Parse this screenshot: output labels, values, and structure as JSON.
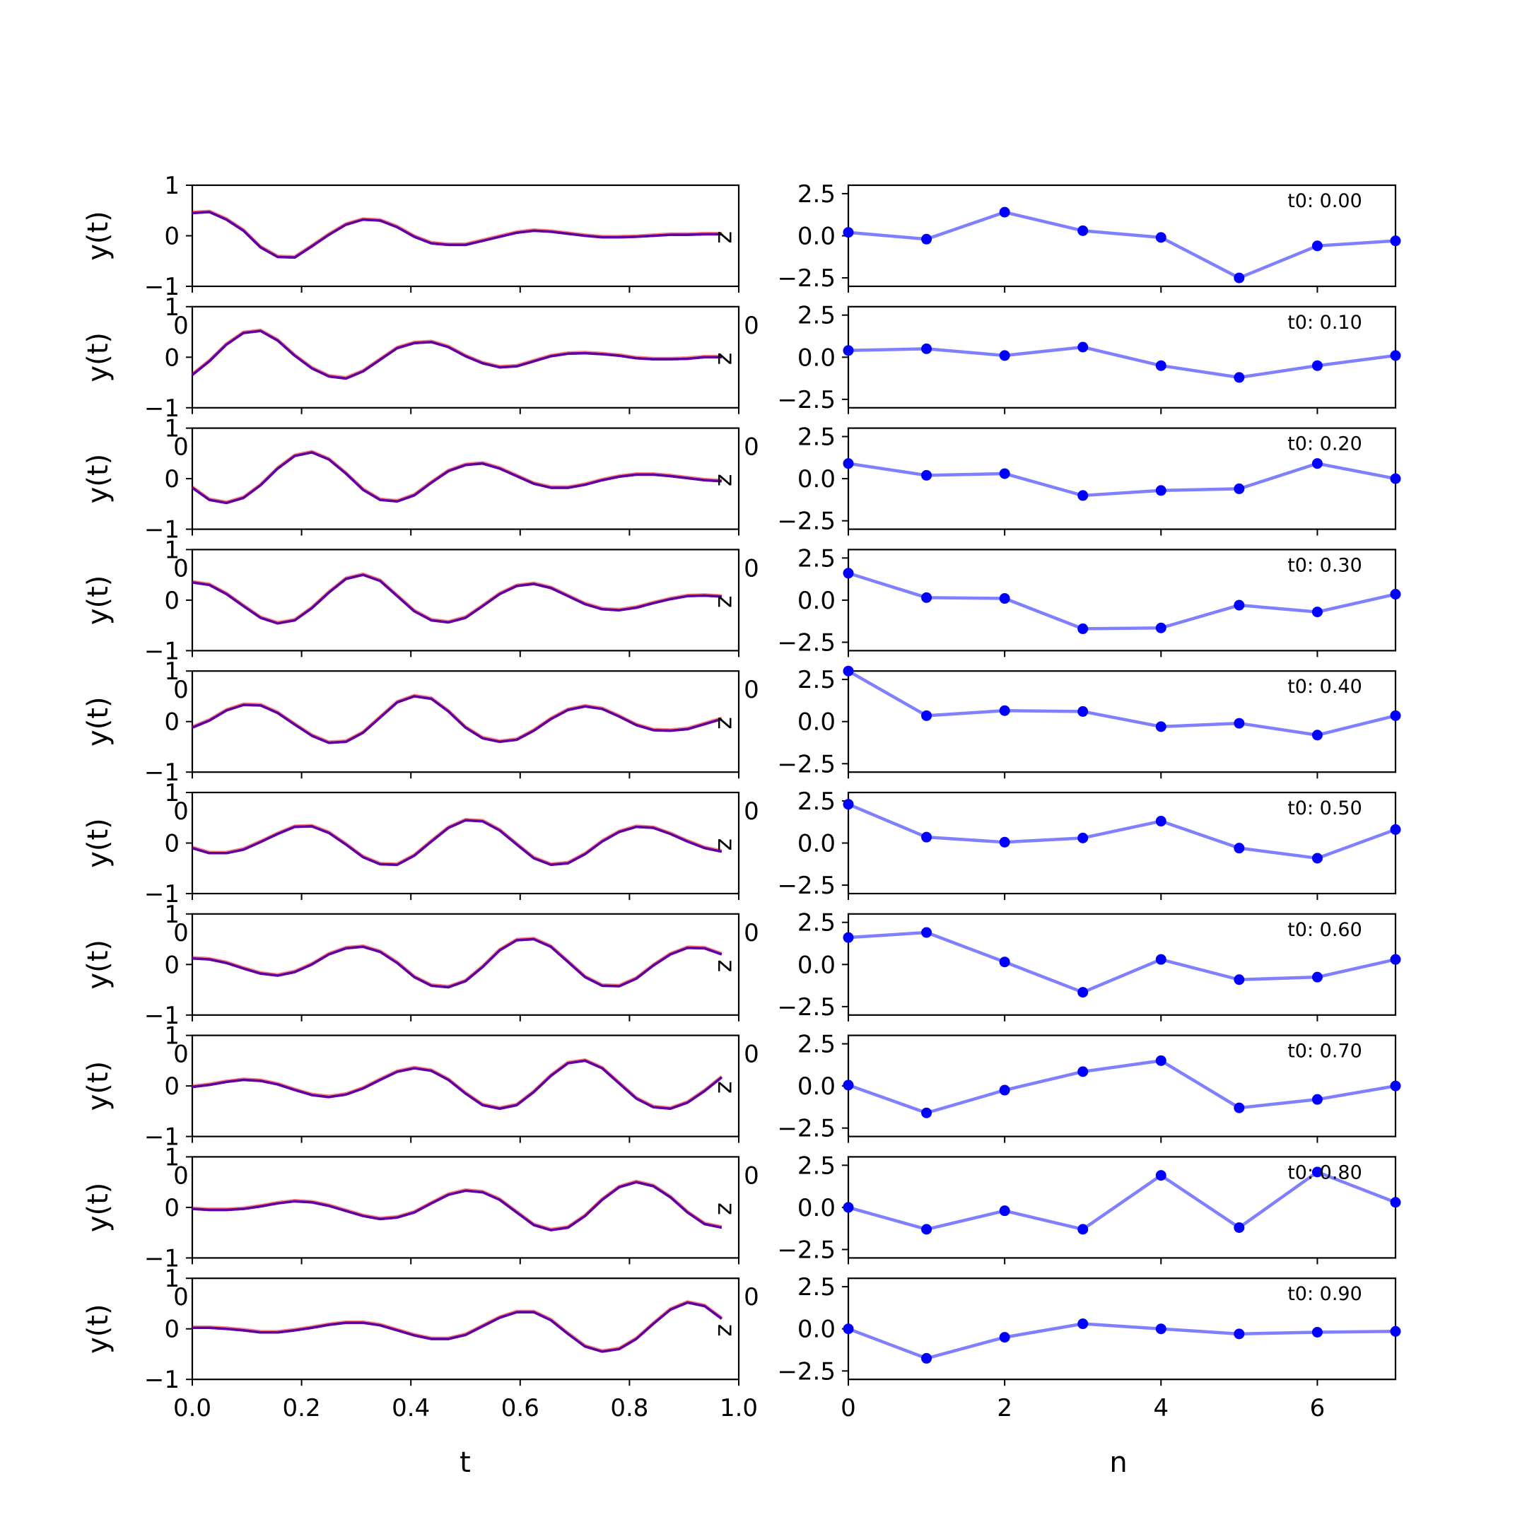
{
  "chart_data": {
    "type": "line",
    "layout": "10 rows x 2 columns of subplots",
    "left_column": {
      "xlabel": "t",
      "ylabel": "y(t)",
      "xlim": [
        0,
        1
      ],
      "ylim": [
        -1,
        1
      ],
      "xticks": [
        "0.0",
        "0.2",
        "0.4",
        "0.6",
        "0.8",
        "1.0"
      ],
      "yticks": [
        "−1",
        "0",
        "1"
      ],
      "colors": {
        "blue": "#0000ff",
        "red": "#ff0000",
        "overlap": "#800080"
      },
      "series_x": [
        0,
        0.03125,
        0.0625,
        0.09375,
        0.125,
        0.15625,
        0.1875,
        0.21875,
        0.25,
        0.28125,
        0.3125,
        0.34375,
        0.375,
        0.40625,
        0.4375,
        0.46875,
        0.5,
        0.53125,
        0.5625,
        0.59375,
        0.625,
        0.65625,
        0.6875,
        0.71875,
        0.75,
        0.78125,
        0.8125,
        0.84375,
        0.875,
        0.90625,
        0.9375,
        0.96875
      ],
      "overflow_labels": [
        "0",
        "0"
      ],
      "right_edge_label": "z"
    },
    "right_column": {
      "xlabel": "n",
      "xlim": [
        0,
        7
      ],
      "ylim": [
        -3.0,
        3.0
      ],
      "xticks": [
        "0",
        "2",
        "4",
        "6"
      ],
      "yticks": [
        "−2.5",
        "0.0",
        "2.5"
      ],
      "color": "#0000ff",
      "x": [
        0,
        1,
        2,
        3,
        4,
        5,
        6,
        7
      ]
    },
    "panels": [
      {
        "t0": "t0: 0.00",
        "y": [
          0.45,
          0.47,
          0.32,
          0.1,
          -0.23,
          -0.42,
          -0.43,
          -0.21,
          0.02,
          0.22,
          0.32,
          0.3,
          0.17,
          -0.02,
          -0.15,
          -0.18,
          -0.18,
          -0.1,
          -0.02,
          0.06,
          0.1,
          0.08,
          0.04,
          0.0,
          -0.03,
          -0.03,
          -0.02,
          0.0,
          0.02,
          0.02,
          0.03,
          0.03
        ],
        "n": [
          0.2,
          -0.2,
          1.4,
          0.3,
          -0.1,
          -2.5,
          -0.6,
          -0.3
        ]
      },
      {
        "t0": "t0: 0.10",
        "y": [
          -0.35,
          -0.08,
          0.25,
          0.48,
          0.52,
          0.33,
          0.03,
          -0.22,
          -0.38,
          -0.42,
          -0.28,
          -0.05,
          0.18,
          0.28,
          0.3,
          0.2,
          0.02,
          -0.12,
          -0.2,
          -0.18,
          -0.08,
          0.02,
          0.07,
          0.08,
          0.06,
          0.03,
          -0.02,
          -0.04,
          -0.04,
          -0.03,
          0.0,
          0.0
        ],
        "n": [
          0.4,
          0.5,
          0.1,
          0.6,
          -0.5,
          -1.2,
          -0.5,
          0.1
        ]
      },
      {
        "t0": "t0: 0.20",
        "y": [
          -0.18,
          -0.42,
          -0.48,
          -0.38,
          -0.13,
          0.2,
          0.45,
          0.52,
          0.38,
          0.1,
          -0.22,
          -0.42,
          -0.45,
          -0.33,
          -0.08,
          0.15,
          0.27,
          0.3,
          0.2,
          0.05,
          -0.1,
          -0.18,
          -0.18,
          -0.12,
          -0.03,
          0.04,
          0.08,
          0.08,
          0.05,
          0.01,
          -0.03,
          -0.05
        ],
        "n": [
          0.9,
          0.2,
          0.3,
          -1.0,
          -0.7,
          -0.6,
          0.9,
          0.0
        ]
      },
      {
        "t0": "t0: 0.30",
        "y": [
          0.35,
          0.3,
          0.12,
          -0.12,
          -0.35,
          -0.46,
          -0.4,
          -0.16,
          0.15,
          0.42,
          0.5,
          0.38,
          0.08,
          -0.22,
          -0.4,
          -0.44,
          -0.35,
          -0.12,
          0.12,
          0.28,
          0.32,
          0.24,
          0.08,
          -0.08,
          -0.18,
          -0.2,
          -0.15,
          -0.06,
          0.02,
          0.08,
          0.09,
          0.07
        ],
        "n": [
          1.6,
          0.15,
          0.1,
          -1.7,
          -1.65,
          -0.3,
          -0.7,
          0.35
        ]
      },
      {
        "t0": "t0: 0.40",
        "y": [
          -0.12,
          0.02,
          0.22,
          0.33,
          0.32,
          0.17,
          -0.06,
          -0.28,
          -0.42,
          -0.4,
          -0.22,
          0.08,
          0.38,
          0.5,
          0.45,
          0.2,
          -0.12,
          -0.33,
          -0.4,
          -0.36,
          -0.18,
          0.05,
          0.23,
          0.3,
          0.25,
          0.1,
          -0.07,
          -0.17,
          -0.18,
          -0.15,
          -0.05,
          0.05
        ],
        "n": [
          3.0,
          0.35,
          0.65,
          0.6,
          -0.3,
          -0.1,
          -0.8,
          0.35
        ]
      },
      {
        "t0": "t0: 0.50",
        "y": [
          -0.1,
          -0.2,
          -0.2,
          -0.13,
          0.02,
          0.18,
          0.32,
          0.33,
          0.2,
          -0.03,
          -0.28,
          -0.42,
          -0.43,
          -0.25,
          0.03,
          0.3,
          0.45,
          0.43,
          0.25,
          -0.03,
          -0.3,
          -0.43,
          -0.4,
          -0.22,
          0.03,
          0.22,
          0.32,
          0.3,
          0.18,
          0.03,
          -0.1,
          -0.17
        ],
        "n": [
          2.3,
          0.35,
          0.05,
          0.3,
          1.3,
          -0.3,
          -0.9,
          0.8
        ]
      },
      {
        "t0": "t0: 0.60",
        "y": [
          0.12,
          0.1,
          0.03,
          -0.08,
          -0.18,
          -0.22,
          -0.15,
          0.0,
          0.2,
          0.32,
          0.35,
          0.25,
          0.03,
          -0.25,
          -0.42,
          -0.45,
          -0.33,
          -0.05,
          0.28,
          0.48,
          0.5,
          0.35,
          0.05,
          -0.25,
          -0.42,
          -0.43,
          -0.28,
          -0.02,
          0.2,
          0.33,
          0.32,
          0.2
        ],
        "n": [
          1.6,
          1.9,
          0.15,
          -1.65,
          0.3,
          -0.9,
          -0.75,
          0.3
        ]
      },
      {
        "t0": "t0: 0.70",
        "y": [
          -0.02,
          0.02,
          0.08,
          0.12,
          0.1,
          0.03,
          -0.08,
          -0.18,
          -0.22,
          -0.17,
          -0.05,
          0.12,
          0.28,
          0.35,
          0.3,
          0.12,
          -0.15,
          -0.38,
          -0.45,
          -0.38,
          -0.12,
          0.2,
          0.45,
          0.5,
          0.35,
          0.05,
          -0.25,
          -0.42,
          -0.45,
          -0.33,
          -0.1,
          0.17
        ],
        "n": [
          0.05,
          -1.6,
          -0.25,
          0.85,
          1.5,
          -1.3,
          -0.8,
          0.0
        ]
      },
      {
        "t0": "t0: 0.80",
        "y": [
          -0.03,
          -0.05,
          -0.05,
          -0.03,
          0.02,
          0.08,
          0.12,
          0.1,
          0.03,
          -0.07,
          -0.17,
          -0.23,
          -0.2,
          -0.1,
          0.08,
          0.25,
          0.33,
          0.3,
          0.15,
          -0.1,
          -0.35,
          -0.45,
          -0.4,
          -0.17,
          0.15,
          0.4,
          0.5,
          0.42,
          0.2,
          -0.1,
          -0.33,
          -0.4
        ],
        "n": [
          0.0,
          -1.3,
          -0.2,
          -1.3,
          1.9,
          -1.2,
          2.1,
          0.3
        ]
      },
      {
        "t0": "t0: 0.90",
        "y": [
          0.02,
          0.02,
          0.0,
          -0.03,
          -0.07,
          -0.07,
          -0.03,
          0.02,
          0.08,
          0.12,
          0.12,
          0.07,
          -0.03,
          -0.13,
          -0.2,
          -0.2,
          -0.12,
          0.05,
          0.22,
          0.33,
          0.33,
          0.17,
          -0.1,
          -0.35,
          -0.45,
          -0.4,
          -0.2,
          0.1,
          0.38,
          0.52,
          0.45,
          0.2
        ],
        "n": [
          0.0,
          -1.75,
          -0.5,
          0.3,
          0.0,
          -0.3,
          -0.2,
          -0.15
        ]
      }
    ]
  }
}
